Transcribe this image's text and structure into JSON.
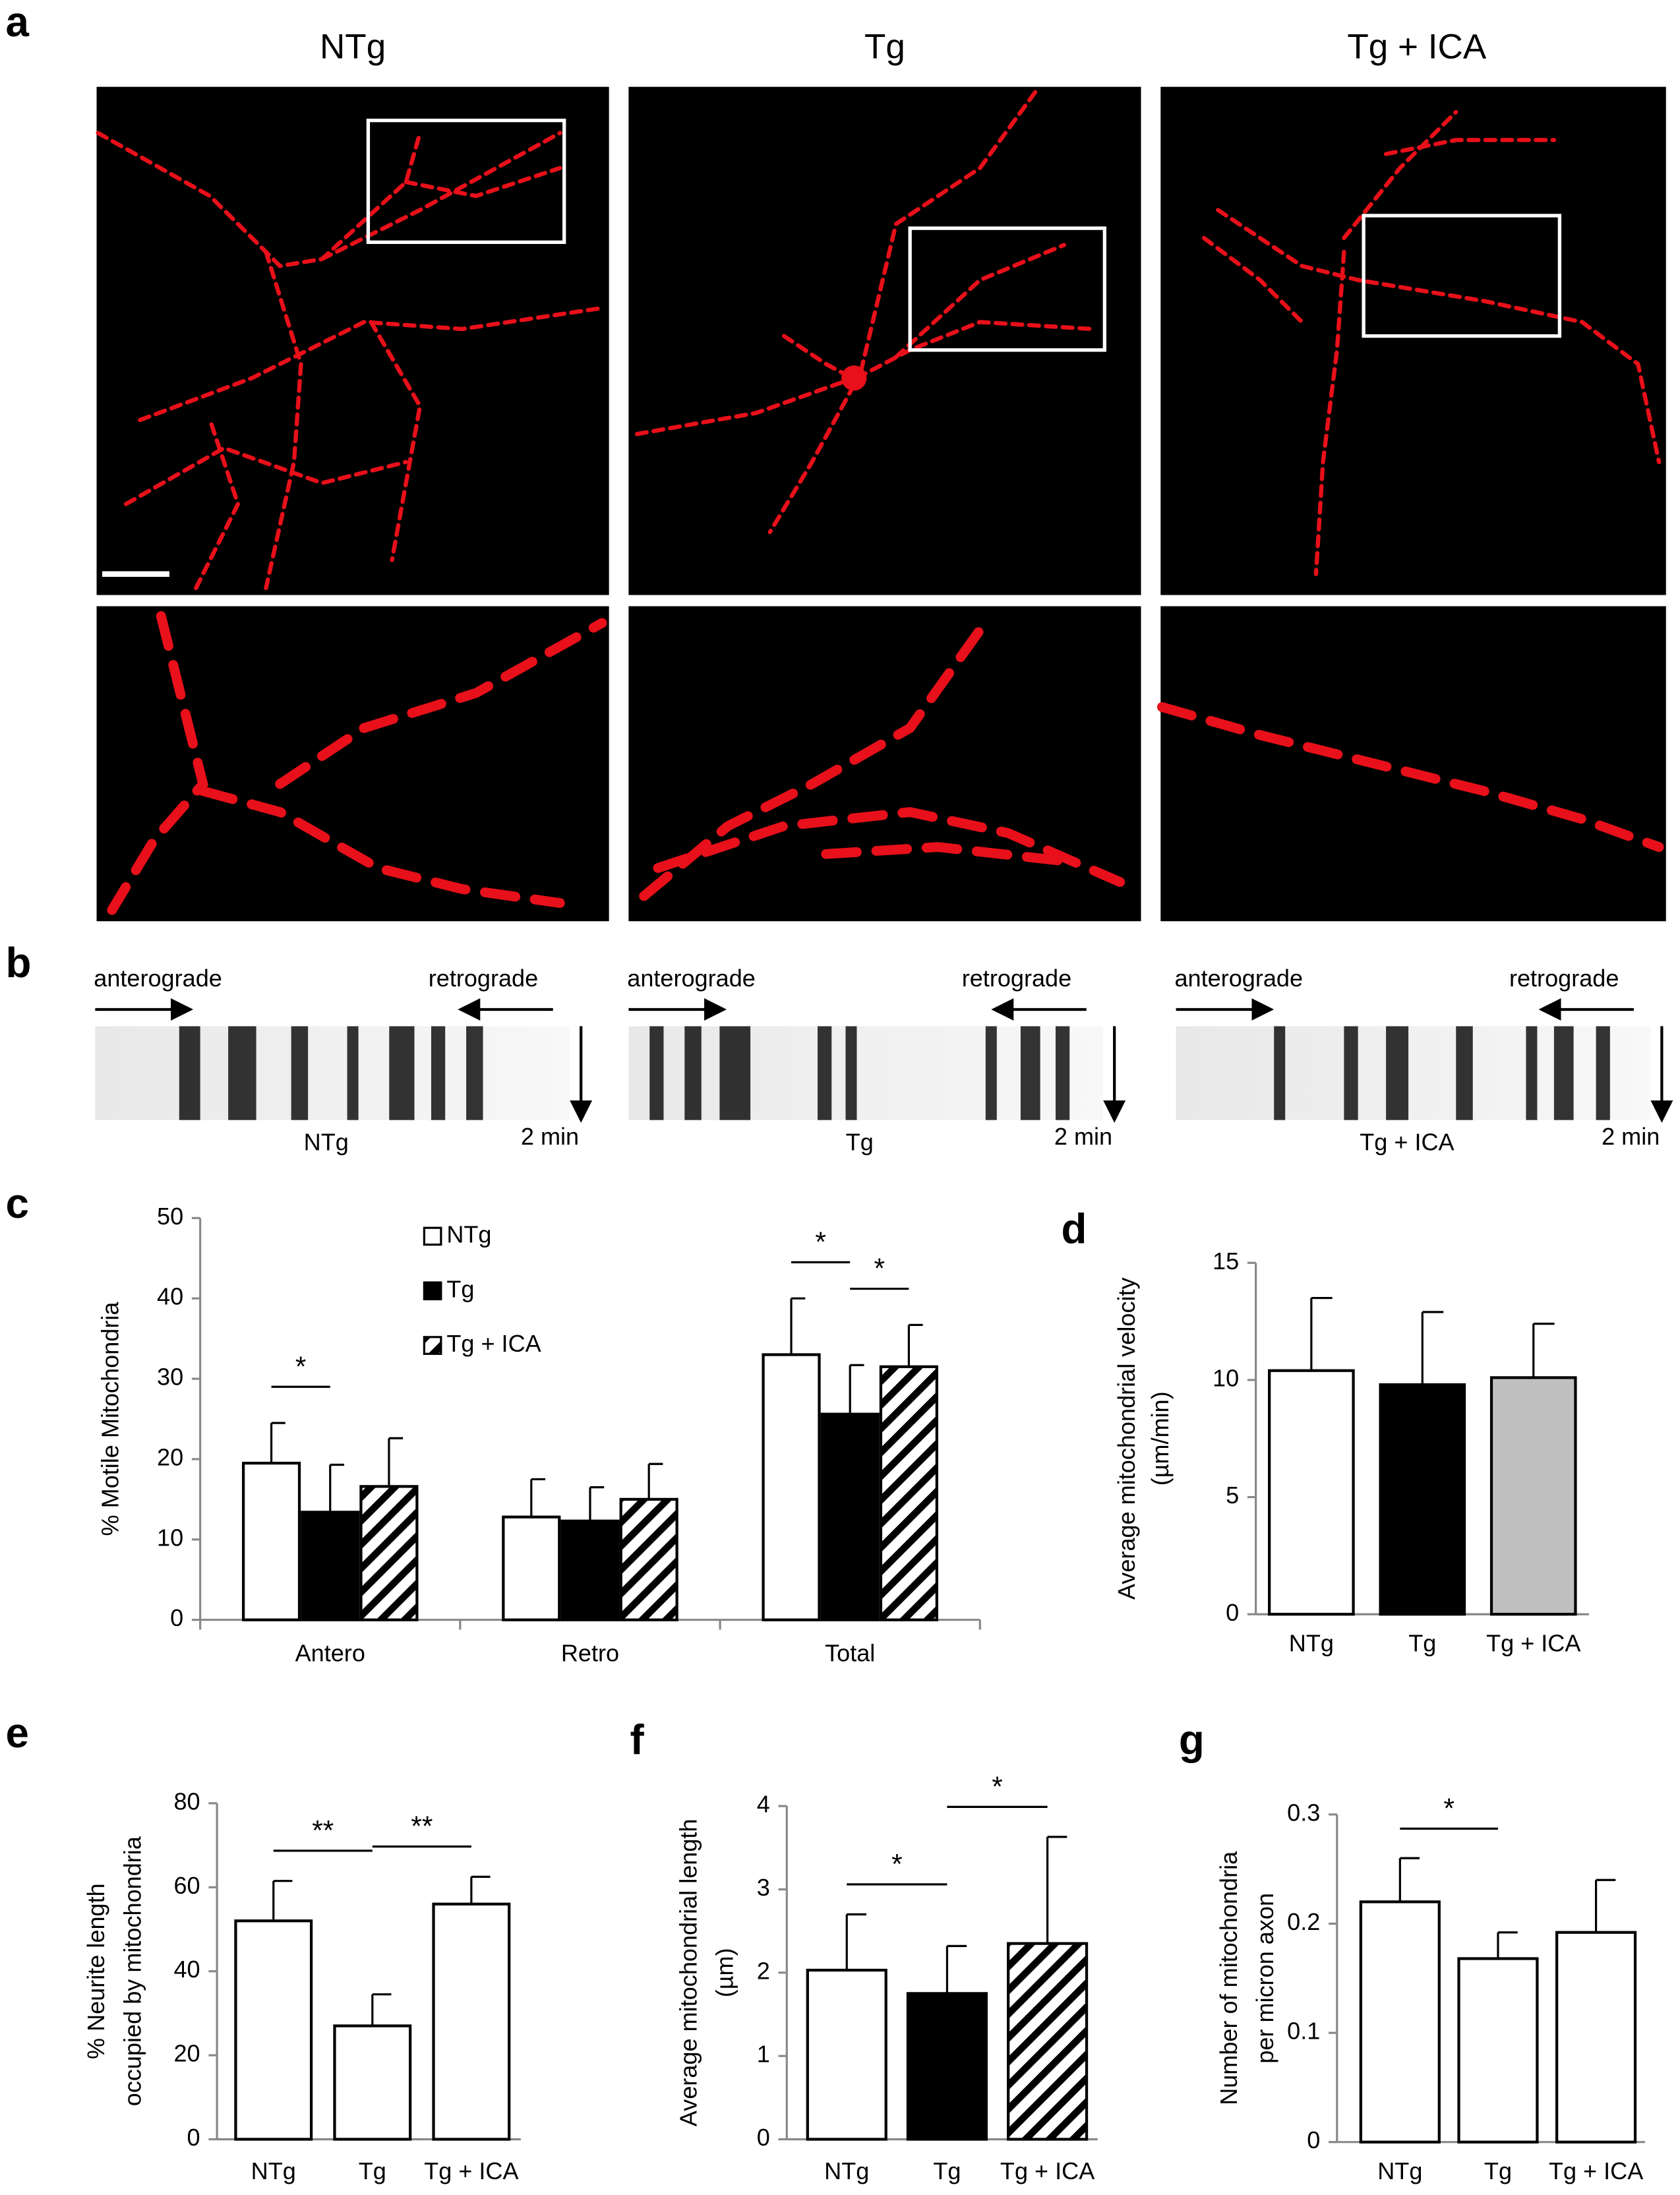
{
  "panel_labels": [
    "a",
    "b",
    "c",
    "d",
    "e",
    "f",
    "g"
  ],
  "panel_a": {
    "titles": [
      "NTg",
      "Tg",
      "Tg + ICA"
    ]
  },
  "panel_b": {
    "direction_labels": [
      "anterograde",
      "retrograde"
    ],
    "time_label": "2 min",
    "captions": [
      "NTg",
      "Tg",
      "Tg + ICA"
    ]
  },
  "chart_data": [
    {
      "type": "bar",
      "ylabel": "% Motile Mitochondria",
      "categories": [
        "Antero",
        "Retro",
        "Total"
      ],
      "series": [
        {
          "name": "NTg",
          "color": "#ffffff",
          "hatch": false,
          "values": [
            19.5,
            12.8,
            33
          ],
          "errors": [
            5,
            4.7,
            7
          ]
        },
        {
          "name": "Tg",
          "color": "#000000",
          "hatch": false,
          "values": [
            13.4,
            12.3,
            25.6
          ],
          "errors": [
            5.9,
            4.2,
            6.1
          ]
        },
        {
          "name": "Tg + ICA",
          "color": "#ffffff",
          "hatch": true,
          "values": [
            16.6,
            15,
            31.5
          ],
          "errors": [
            6,
            4.4,
            5.2
          ]
        }
      ],
      "ylim": [
        0,
        50
      ],
      "yticks": [
        0,
        10,
        20,
        30,
        40,
        50
      ],
      "legend": "top",
      "annotations": [
        {
          "label": "*",
          "category": "Antero",
          "between": [
            "NTg",
            "Tg"
          ]
        },
        {
          "label": "*",
          "category": "Total",
          "between": [
            "NTg",
            "Tg"
          ]
        },
        {
          "label": "*",
          "category": "Total",
          "between": [
            "Tg",
            "Tg + ICA"
          ]
        }
      ]
    },
    {
      "type": "bar",
      "ylabel": [
        "Average mitochondrial velocity",
        "(µm/min)"
      ],
      "categories": [
        "NTg",
        "Tg",
        "Tg + ICA"
      ],
      "values": [
        10.4,
        9.8,
        10.1
      ],
      "errors": [
        3.1,
        3.1,
        2.3
      ],
      "colors": [
        "#ffffff",
        "#000000",
        "#c0c0c0"
      ],
      "hatch": [
        false,
        false,
        false
      ],
      "ylim": [
        0,
        15
      ],
      "yticks": [
        0,
        5,
        10,
        15
      ],
      "annotations": []
    },
    {
      "type": "bar",
      "ylabel": [
        "% Neurite length",
        "occupied by mitochondria"
      ],
      "categories": [
        "NTg",
        "Tg",
        "Tg + ICA"
      ],
      "values": [
        52,
        27,
        56
      ],
      "errors": [
        9.5,
        7.5,
        6.5
      ],
      "colors": [
        "#ffffff",
        "#ffffff",
        "#ffffff"
      ],
      "hatch": [
        false,
        false,
        false
      ],
      "ylim": [
        0,
        80
      ],
      "yticks": [
        0,
        20,
        40,
        60,
        80
      ],
      "annotations": [
        {
          "label": "**",
          "between": [
            "NTg",
            "Tg"
          ]
        },
        {
          "label": "**",
          "between": [
            "Tg",
            "Tg + ICA"
          ]
        }
      ]
    },
    {
      "type": "bar",
      "ylabel": [
        "Average mitochondrial length",
        "(µm)"
      ],
      "categories": [
        "NTg",
        "Tg",
        "Tg + ICA"
      ],
      "values": [
        2.03,
        1.75,
        2.35
      ],
      "errors": [
        0.67,
        0.57,
        1.28
      ],
      "colors": [
        "#ffffff",
        "#000000",
        "#ffffff"
      ],
      "hatch": [
        false,
        false,
        true
      ],
      "ylim": [
        0,
        4
      ],
      "yticks": [
        0,
        1,
        2,
        3,
        4
      ],
      "annotations": [
        {
          "label": "*",
          "between": [
            "NTg",
            "Tg"
          ]
        },
        {
          "label": "*",
          "between": [
            "Tg",
            "Tg + ICA"
          ]
        }
      ]
    },
    {
      "type": "bar",
      "ylabel": [
        "Number of mitochondria",
        "per micron axon"
      ],
      "categories": [
        "NTg",
        "Tg",
        "Tg + ICA"
      ],
      "values": [
        0.22,
        0.168,
        0.192
      ],
      "errors": [
        0.04,
        0.024,
        0.048
      ],
      "colors": [
        "#ffffff",
        "#ffffff",
        "#ffffff"
      ],
      "hatch": [
        false,
        false,
        false
      ],
      "ylim": [
        0,
        0.3
      ],
      "yticks": [
        0,
        0.1,
        0.2,
        0.3
      ],
      "annotations": [
        {
          "label": "*",
          "between": [
            "NTg",
            "Tg"
          ]
        }
      ]
    }
  ]
}
